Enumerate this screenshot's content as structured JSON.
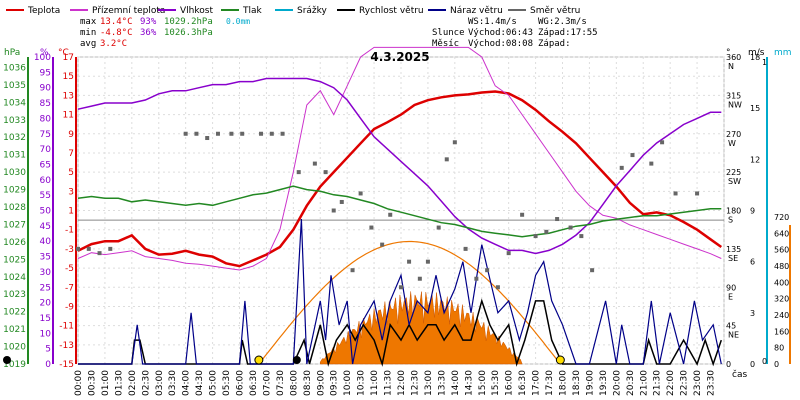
{
  "legend": [
    {
      "label": "Teplota",
      "color": "#dd0000"
    },
    {
      "label": "Přízemní teplota",
      "color": "#cc33cc"
    },
    {
      "label": "Vlhkost",
      "color": "#8800cc"
    },
    {
      "label": "Tlak",
      "color": "#228822"
    },
    {
      "label": "Srážky",
      "color": "#00aacc"
    },
    {
      "label": "Rychlost větru",
      "color": "#000000"
    },
    {
      "label": "Náraz větru",
      "color": "#000088"
    },
    {
      "label": "Směr větru",
      "color": "#666666"
    }
  ],
  "stats": {
    "max_label": "max",
    "max_temp": "13.4°C",
    "max_hum": "93%",
    "max_press": "1029.2hPa",
    "max_rain": "0.0mm",
    "min_label": "min",
    "min_temp": "-4.8°C",
    "min_hum": "36%",
    "min_press": "1026.3hPa",
    "avg_label": "avg",
    "avg_temp": "3.2°C"
  },
  "info": {
    "ws": "WS:1.4m/s",
    "wg": "WG:2.3m/s",
    "sun": "Slunce",
    "sun_rise": "Východ:06:43",
    "sun_set": "Západ:17:55",
    "moon": "Měsíc",
    "moon_rise": "Východ:08:08",
    "moon_set": "Západ:"
  },
  "chart_data": {
    "type": "line",
    "title": "4.3.2025",
    "xlabel": "čas",
    "x_ticks": [
      "00:00",
      "00:30",
      "01:00",
      "01:30",
      "02:00",
      "02:30",
      "03:00",
      "03:30",
      "04:00",
      "04:30",
      "05:00",
      "05:30",
      "06:00",
      "06:30",
      "07:00",
      "07:30",
      "08:00",
      "08:30",
      "09:00",
      "09:30",
      "10:00",
      "10:30",
      "11:00",
      "11:30",
      "12:00",
      "12:30",
      "13:00",
      "13:30",
      "14:00",
      "14:30",
      "15:00",
      "15:30",
      "16:00",
      "16:30",
      "17:00",
      "17:30",
      "18:00",
      "18:30",
      "19:00",
      "19:30",
      "20:00",
      "20:30",
      "21:00",
      "21:30",
      "22:00",
      "22:30",
      "23:00",
      "23:30"
    ],
    "axes": {
      "hpa": {
        "label": "hPa",
        "color": "#228822",
        "ticks": [
          1019,
          1020,
          1021,
          1022,
          1023,
          1024,
          1025,
          1026,
          1027,
          1028,
          1029,
          1030,
          1031,
          1032,
          1033,
          1034,
          1035,
          1036
        ]
      },
      "pct": {
        "label": "%",
        "color": "#8800cc",
        "ticks": [
          0,
          5,
          10,
          15,
          20,
          25,
          30,
          35,
          40,
          45,
          50,
          55,
          60,
          65,
          70,
          75,
          80,
          85,
          90,
          95,
          100
        ]
      },
      "degc": {
        "label": "°C",
        "color": "#dd0000",
        "ticks": [
          -15,
          -13,
          -11,
          -9,
          -7,
          -5,
          -3,
          -1,
          1,
          3,
          5,
          7,
          9,
          11,
          13,
          15,
          17
        ]
      },
      "dir": {
        "label": "°",
        "color": "#000000",
        "ticks": [
          "0",
          "45 NE",
          "90 E",
          "135 SE",
          "180 S",
          "225 SW",
          "270 W",
          "315 NW",
          "360 N"
        ]
      },
      "ms": {
        "label": "m/s",
        "color": "#000000",
        "ticks": [
          "0",
          "3",
          "6",
          "9",
          "12",
          "15",
          "18"
        ]
      },
      "mm": {
        "label": "mm",
        "color": "#00aacc",
        "ticks": [
          "0",
          "1"
        ]
      },
      "wm2": {
        "color": "#ee7700",
        "ticks": [
          "0",
          "80",
          "160",
          "240",
          "320",
          "400",
          "480",
          "560",
          "640",
          "720"
        ]
      }
    },
    "series": [
      {
        "name": "Teplota",
        "unit": "°C",
        "color": "#dd0000",
        "x": [
          0,
          0.5,
          1,
          1.5,
          2,
          2.5,
          3,
          3.5,
          4,
          4.5,
          5,
          5.5,
          6,
          6.5,
          7,
          7.5,
          8,
          8.5,
          9,
          9.5,
          10,
          10.5,
          11,
          11.5,
          12,
          12.5,
          13,
          13.5,
          14,
          14.5,
          15,
          15.5,
          16,
          16.5,
          17,
          17.5,
          18,
          18.5,
          19,
          19.5,
          20,
          20.5,
          21,
          21.5,
          22,
          22.5,
          23,
          23.5,
          23.9
        ],
        "y": [
          -3.2,
          -2.5,
          -2.2,
          -2.2,
          -1.6,
          -3,
          -3.6,
          -3.5,
          -3.2,
          -3.6,
          -3.8,
          -4.5,
          -4.8,
          -4.2,
          -3.6,
          -2.8,
          -1,
          1.5,
          3.5,
          5,
          6.5,
          8,
          9.5,
          10.2,
          11,
          12,
          12.5,
          12.8,
          13,
          13.1,
          13.3,
          13.4,
          13.2,
          12.5,
          11.5,
          10.3,
          9.2,
          8,
          6.5,
          5,
          3.5,
          1.8,
          0.6,
          0.8,
          0.5,
          -0.2,
          -1,
          -2,
          -2.8
        ]
      },
      {
        "name": "Přízemní teplota",
        "unit": "°C",
        "color": "#cc33cc",
        "x": [
          0,
          0.5,
          1,
          1.5,
          2,
          2.5,
          3,
          3.5,
          4,
          4.5,
          5,
          5.5,
          6,
          6.5,
          7,
          7.5,
          8,
          8.5,
          9,
          9.5,
          10,
          10.5,
          11,
          11.5,
          12,
          12.5,
          13,
          13.5,
          14,
          14.5,
          15,
          15.5,
          16,
          16.5,
          17,
          17.5,
          18,
          18.5,
          19,
          19.5,
          20,
          20.5,
          21,
          21.5,
          22,
          22.5,
          23,
          23.5,
          23.9
        ],
        "y": [
          -4,
          -3.4,
          -3.6,
          -3.4,
          -3.2,
          -3.8,
          -4,
          -4.2,
          -4.5,
          -4.6,
          -4.8,
          -5,
          -5.2,
          -4.8,
          -4,
          -1,
          5,
          12,
          13.5,
          11,
          14,
          17,
          18,
          18,
          18,
          18,
          18,
          18,
          18,
          18,
          17,
          14,
          13,
          11,
          9,
          7,
          5,
          3,
          1.5,
          0.5,
          0.2,
          -0.5,
          -1,
          -1.5,
          -2,
          -2.5,
          -3,
          -3.5,
          -4
        ]
      },
      {
        "name": "Vlhkost",
        "unit": "%",
        "color": "#8800cc",
        "x": [
          0,
          0.5,
          1,
          1.5,
          2,
          2.5,
          3,
          3.5,
          4,
          4.5,
          5,
          5.5,
          6,
          6.5,
          7,
          7.5,
          8,
          8.5,
          9,
          9.5,
          10,
          10.5,
          11,
          11.5,
          12,
          12.5,
          13,
          13.5,
          14,
          14.5,
          15,
          15.5,
          16,
          16.5,
          17,
          17.5,
          18,
          18.5,
          19,
          19.5,
          20,
          20.5,
          21,
          21.5,
          22,
          22.5,
          23,
          23.5,
          23.9
        ],
        "y": [
          83,
          84,
          85,
          85,
          85,
          86,
          88,
          89,
          89,
          90,
          91,
          91,
          92,
          92,
          93,
          93,
          93,
          93,
          92,
          90,
          86,
          80,
          74,
          70,
          66,
          62,
          58,
          53,
          48,
          44,
          41,
          39,
          37,
          37,
          36,
          37,
          39,
          42,
          46,
          52,
          58,
          63,
          68,
          72,
          75,
          78,
          80,
          82,
          82
        ]
      },
      {
        "name": "Tlak",
        "unit": "hPa",
        "color": "#228822",
        "x": [
          0,
          0.5,
          1,
          1.5,
          2,
          2.5,
          3,
          3.5,
          4,
          4.5,
          5,
          5.5,
          6,
          6.5,
          7,
          7.5,
          8,
          8.5,
          9,
          9.5,
          10,
          10.5,
          11,
          11.5,
          12,
          12.5,
          13,
          13.5,
          14,
          14.5,
          15,
          15.5,
          16,
          16.5,
          17,
          17.5,
          18,
          18.5,
          19,
          19.5,
          20,
          20.5,
          21,
          21.5,
          22,
          22.5,
          23,
          23.5,
          23.9
        ],
        "y": [
          1028.5,
          1028.6,
          1028.5,
          1028.5,
          1028.3,
          1028.4,
          1028.3,
          1028.2,
          1028.1,
          1028.2,
          1028.1,
          1028.3,
          1028.5,
          1028.7,
          1028.8,
          1029.0,
          1029.2,
          1029.0,
          1028.9,
          1028.7,
          1028.6,
          1028.4,
          1028.2,
          1027.9,
          1027.7,
          1027.5,
          1027.3,
          1027.1,
          1027.0,
          1026.8,
          1026.6,
          1026.5,
          1026.4,
          1026.3,
          1026.4,
          1026.5,
          1026.7,
          1026.9,
          1027.0,
          1027.2,
          1027.3,
          1027.4,
          1027.5,
          1027.5,
          1027.6,
          1027.7,
          1027.8,
          1027.9,
          1027.9
        ]
      },
      {
        "name": "Rychlost větru",
        "unit": "m/s",
        "color": "#000000",
        "x": [
          0,
          2,
          2.1,
          2.3,
          2.5,
          6,
          6.1,
          6.3,
          6.5,
          8,
          8.4,
          8.6,
          9,
          9.3,
          9.6,
          10,
          10.3,
          10.6,
          11,
          11.3,
          11.6,
          12,
          12.3,
          12.6,
          13,
          13.3,
          13.6,
          14,
          14.3,
          14.6,
          15,
          15.3,
          15.6,
          16,
          16.3,
          16.6,
          17,
          17.3,
          17.6,
          18,
          18.3,
          18.6,
          19,
          21,
          21.2,
          21.5,
          22,
          22.5,
          23,
          23.3,
          23.6,
          23.9
        ],
        "y": [
          0,
          0,
          1.4,
          1.4,
          0,
          0,
          1.4,
          0,
          0,
          0,
          1.4,
          0,
          2.3,
          0,
          1.4,
          2.3,
          1.4,
          2.3,
          1.4,
          0,
          2.3,
          1.4,
          2.3,
          1.4,
          2.3,
          2.3,
          1.4,
          2.3,
          1.4,
          1.4,
          3.7,
          2.3,
          1.4,
          2.3,
          0,
          1.4,
          3.7,
          3.7,
          1.4,
          0,
          0,
          0,
          0,
          0,
          1.4,
          0,
          0,
          1.4,
          0,
          1.4,
          0,
          1.4
        ]
      },
      {
        "name": "Náraz větru",
        "unit": "m/s",
        "color": "#000088",
        "x": [
          0,
          1,
          2,
          2.2,
          2.4,
          4,
          4.2,
          4.4,
          6,
          6.2,
          6.4,
          8,
          8.3,
          8.5,
          9,
          9.2,
          9.4,
          9.7,
          10,
          10.2,
          10.5,
          11,
          11.3,
          11.6,
          12,
          12.3,
          12.6,
          13,
          13.3,
          13.6,
          14,
          14.3,
          14.6,
          15,
          15.3,
          15.6,
          16,
          16.4,
          16.7,
          17,
          17.3,
          17.6,
          18,
          18.5,
          19,
          19.6,
          20,
          20.2,
          20.5,
          21,
          21.3,
          21.6,
          22,
          22.5,
          22.9,
          23.2,
          23.6,
          23.9
        ],
        "y": [
          0,
          0,
          0,
          2.3,
          0,
          0,
          3,
          0,
          0,
          3.7,
          0,
          0,
          8.5,
          0,
          3.7,
          1.4,
          5.2,
          2.3,
          3.7,
          0,
          2.3,
          3.7,
          1.4,
          3.7,
          5.2,
          2.3,
          3.7,
          3,
          5.2,
          3,
          4.4,
          6,
          3,
          7,
          5,
          3,
          3.7,
          1.4,
          3,
          5.2,
          6,
          3.7,
          2.3,
          0,
          0,
          3.7,
          0,
          2.3,
          0,
          0,
          3.7,
          0,
          3,
          0,
          3.7,
          1.4,
          2.3,
          0
        ]
      },
      {
        "name": "Směr větru",
        "unit": "°",
        "color": "#666666",
        "x": [
          0,
          0.4,
          0.8,
          1.2,
          4,
          4.4,
          4.8,
          5.2,
          5.7,
          6.1,
          6.8,
          7.2,
          7.6,
          8.2,
          8.8,
          9.2,
          9.5,
          9.8,
          10.2,
          10.5,
          10.9,
          11.3,
          11.6,
          12,
          12.3,
          12.7,
          13,
          13.4,
          13.7,
          14,
          14.4,
          14.8,
          15.2,
          15.6,
          16,
          16.5,
          17,
          17.4,
          17.8,
          18.3,
          18.7,
          19.1,
          20.2,
          20.6,
          21.3,
          21.7,
          22.2,
          23
        ],
        "y": [
          135,
          135,
          130,
          135,
          270,
          270,
          265,
          270,
          270,
          270,
          270,
          270,
          270,
          225,
          235,
          225,
          180,
          190,
          110,
          200,
          160,
          140,
          175,
          90,
          120,
          100,
          120,
          160,
          240,
          260,
          135,
          100,
          110,
          90,
          130,
          175,
          150,
          155,
          170,
          160,
          150,
          110,
          230,
          245,
          235,
          260,
          200,
          200
        ]
      }
    ]
  }
}
